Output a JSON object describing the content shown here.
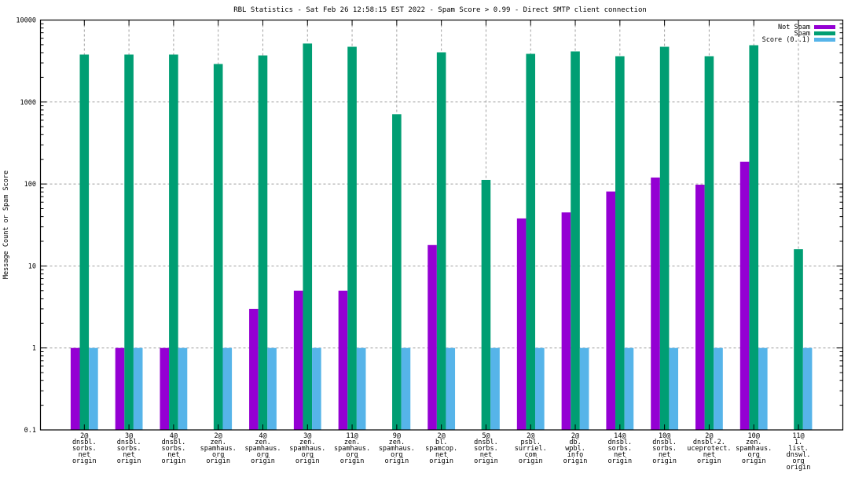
{
  "chart_data": {
    "type": "bar",
    "title": "RBL Statistics - Sat Feb 26 12:58:15 EST 2022 - Spam Score > 0.99 - Direct SMTP client connection",
    "xlabel": "",
    "ylabel": "Message Count or Spam Score",
    "yscale": "log",
    "ylim": [
      0.1,
      10000
    ],
    "yticks": [
      {
        "value": 0.1,
        "label": "0.1"
      },
      {
        "value": 1,
        "label": "1"
      },
      {
        "value": 10,
        "label": "10"
      },
      {
        "value": 100,
        "label": "100"
      },
      {
        "value": 1000,
        "label": "1000"
      },
      {
        "value": 10000,
        "label": "10000"
      }
    ],
    "grid": true,
    "legend_position": "top-right",
    "categories": [
      [
        "2@",
        "dnsbl.",
        "sorbs.",
        "net",
        "origin"
      ],
      [
        "3@",
        "dnsbl.",
        "sorbs.",
        "net",
        "origin"
      ],
      [
        "4@",
        "dnsbl.",
        "sorbs.",
        "net",
        "origin"
      ],
      [
        "2@",
        "zen.",
        "spamhaus.",
        "org",
        "origin"
      ],
      [
        "4@",
        "zen.",
        "spamhaus.",
        "org",
        "origin"
      ],
      [
        "3@",
        "zen.",
        "spamhaus.",
        "org",
        "origin"
      ],
      [
        "11@",
        "zen.",
        "spamhaus.",
        "org",
        "origin"
      ],
      [
        "9@",
        "zen.",
        "spamhaus.",
        "org",
        "origin"
      ],
      [
        "2@",
        "bl.",
        "spamcop.",
        "net",
        "origin"
      ],
      [
        "5@",
        "dnsbl.",
        "sorbs.",
        "net",
        "origin"
      ],
      [
        "2@",
        "psbl.",
        "surriel.",
        "com",
        "origin"
      ],
      [
        "2@",
        "db.",
        "wpbl.",
        "info",
        "origin"
      ],
      [
        "14@",
        "dnsbl.",
        "sorbs.",
        "net",
        "origin"
      ],
      [
        "10@",
        "dnsbl.",
        "sorbs.",
        "net",
        "origin"
      ],
      [
        "2@",
        "dnsbl-2.",
        "uceprotect.",
        "net",
        "origin"
      ],
      [
        "10@",
        "zen.",
        "spamhaus.",
        "org",
        "origin"
      ],
      [
        "11@",
        "1.",
        "list.",
        "dnswl.",
        "org",
        "origin"
      ]
    ],
    "series": [
      {
        "name": "Not Spam",
        "color": "#9400D3",
        "values": [
          1,
          1,
          1,
          0,
          3,
          5,
          5,
          0,
          18,
          0,
          38,
          45,
          81,
          120,
          98,
          187,
          0
        ]
      },
      {
        "name": "Spam",
        "color": "#009E73",
        "values": [
          3790,
          3790,
          3790,
          2910,
          3700,
          5170,
          4720,
          710,
          4040,
          112,
          3870,
          4140,
          3620,
          4720,
          3620,
          4930,
          16
        ]
      },
      {
        "name": "Score (0..1)",
        "color": "#56B4E9",
        "values": [
          1,
          1,
          1,
          1,
          1,
          1,
          1,
          1,
          1,
          1,
          1,
          1,
          1,
          1,
          1,
          1,
          1
        ]
      }
    ]
  }
}
